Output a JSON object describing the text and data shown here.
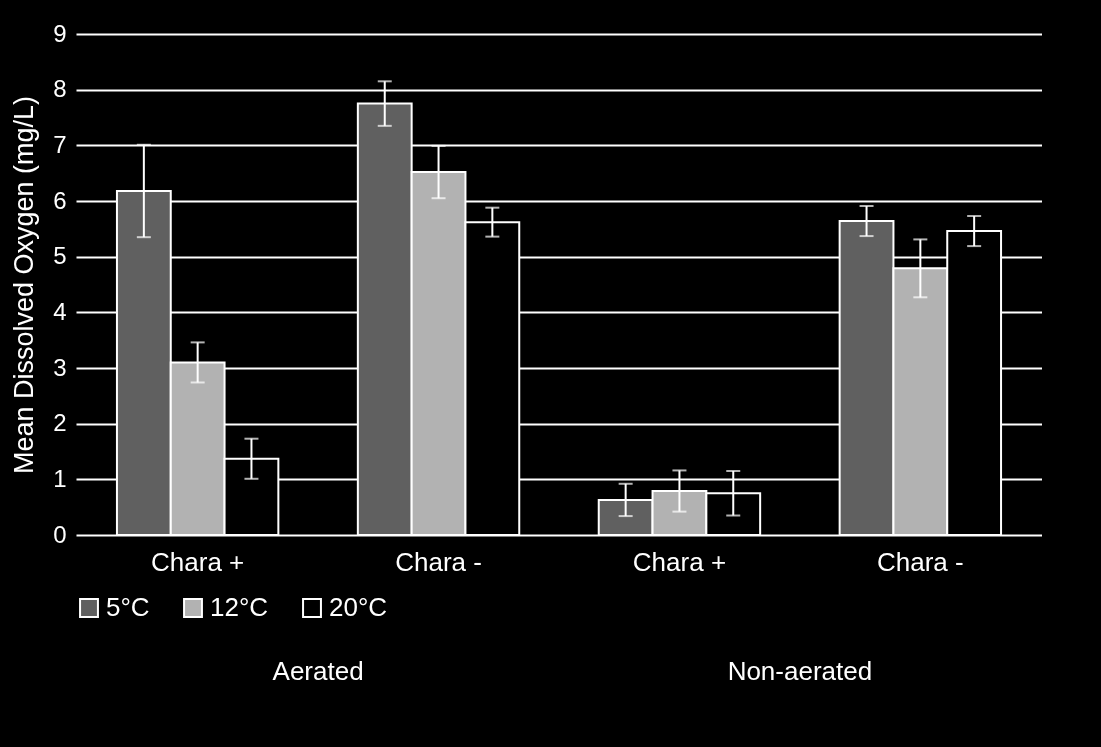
{
  "chart_data": {
    "type": "bar",
    "ylabel": "Mean Dissolved Oxygen (mg/L)",
    "categories": [
      "Chara +",
      "Chara -",
      "Chara +",
      "Chara -"
    ],
    "annotations": [
      "Aerated",
      "Non-aerated"
    ],
    "series": [
      {
        "name": "5°C",
        "color": "#606060",
        "values": [
          6.18,
          7.75,
          0.63,
          5.64
        ],
        "errors": [
          0.83,
          0.4,
          0.29,
          0.27
        ]
      },
      {
        "name": "12°C",
        "color": "#b2b2b2",
        "values": [
          3.1,
          6.52,
          0.79,
          4.79
        ],
        "errors": [
          0.36,
          0.47,
          0.37,
          0.52
        ]
      },
      {
        "name": "20°C",
        "color": "#000000",
        "values": [
          1.37,
          5.62,
          0.75,
          5.46
        ],
        "errors": [
          0.36,
          0.26,
          0.4,
          0.27
        ]
      }
    ],
    "ylim": [
      0,
      9
    ],
    "yticks": [
      0,
      1,
      2,
      3,
      4,
      5,
      6,
      7,
      8,
      9
    ],
    "grid": "y",
    "legend": "bottom"
  }
}
